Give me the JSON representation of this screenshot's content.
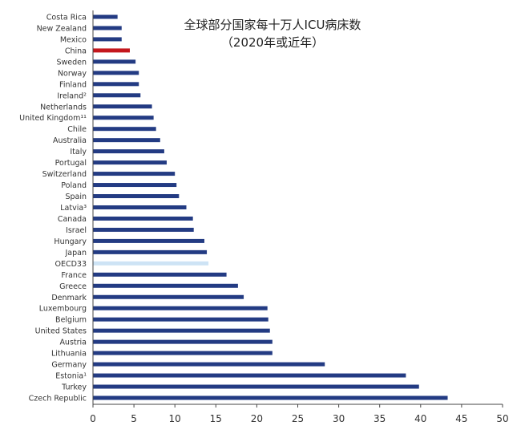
{
  "chart_data": {
    "type": "bar",
    "orientation": "horizontal",
    "title": "全球部分国家每十万人ICU病床数",
    "subtitle": "（2020年或近年）",
    "xlabel": "",
    "ylabel": "",
    "xlim": [
      0,
      50
    ],
    "x_ticks": [
      0,
      5,
      10,
      15,
      20,
      25,
      30,
      35,
      40,
      45,
      50
    ],
    "categories": [
      "Costa Rica",
      "New Zealand",
      "Mexico",
      "China",
      "Sweden",
      "Norway",
      "Finland",
      "Ireland²",
      "Netherlands",
      "United Kingdom¹¹",
      "Chile",
      "Australia",
      "Italy",
      "Portugal",
      "Switzerland",
      "Poland",
      "Spain",
      "Latvia³",
      "Canada",
      "Israel",
      "Hungary",
      "Japan",
      "OECD33",
      "France",
      "Greece",
      "Denmark",
      "Luxembourg",
      "Belgium",
      "United States",
      "Austria",
      "Lithuania",
      "Germany",
      "Estonia¹",
      "Turkey",
      "Czech Republic"
    ],
    "values": [
      3.0,
      3.5,
      3.5,
      4.5,
      5.2,
      5.6,
      5.6,
      5.8,
      7.2,
      7.4,
      7.7,
      8.2,
      8.7,
      9.0,
      10.0,
      10.2,
      10.5,
      11.4,
      12.2,
      12.3,
      13.6,
      13.9,
      14.1,
      16.3,
      17.7,
      18.4,
      21.3,
      21.4,
      21.6,
      21.9,
      21.9,
      28.3,
      38.2,
      39.8,
      43.3
    ],
    "colors": {
      "default": "#233b83",
      "highlight_china": "#c4171d",
      "highlight_oecd": "#cde3f5",
      "axis": "#444444",
      "text": "#333333"
    },
    "grid": false,
    "legend": "none"
  }
}
